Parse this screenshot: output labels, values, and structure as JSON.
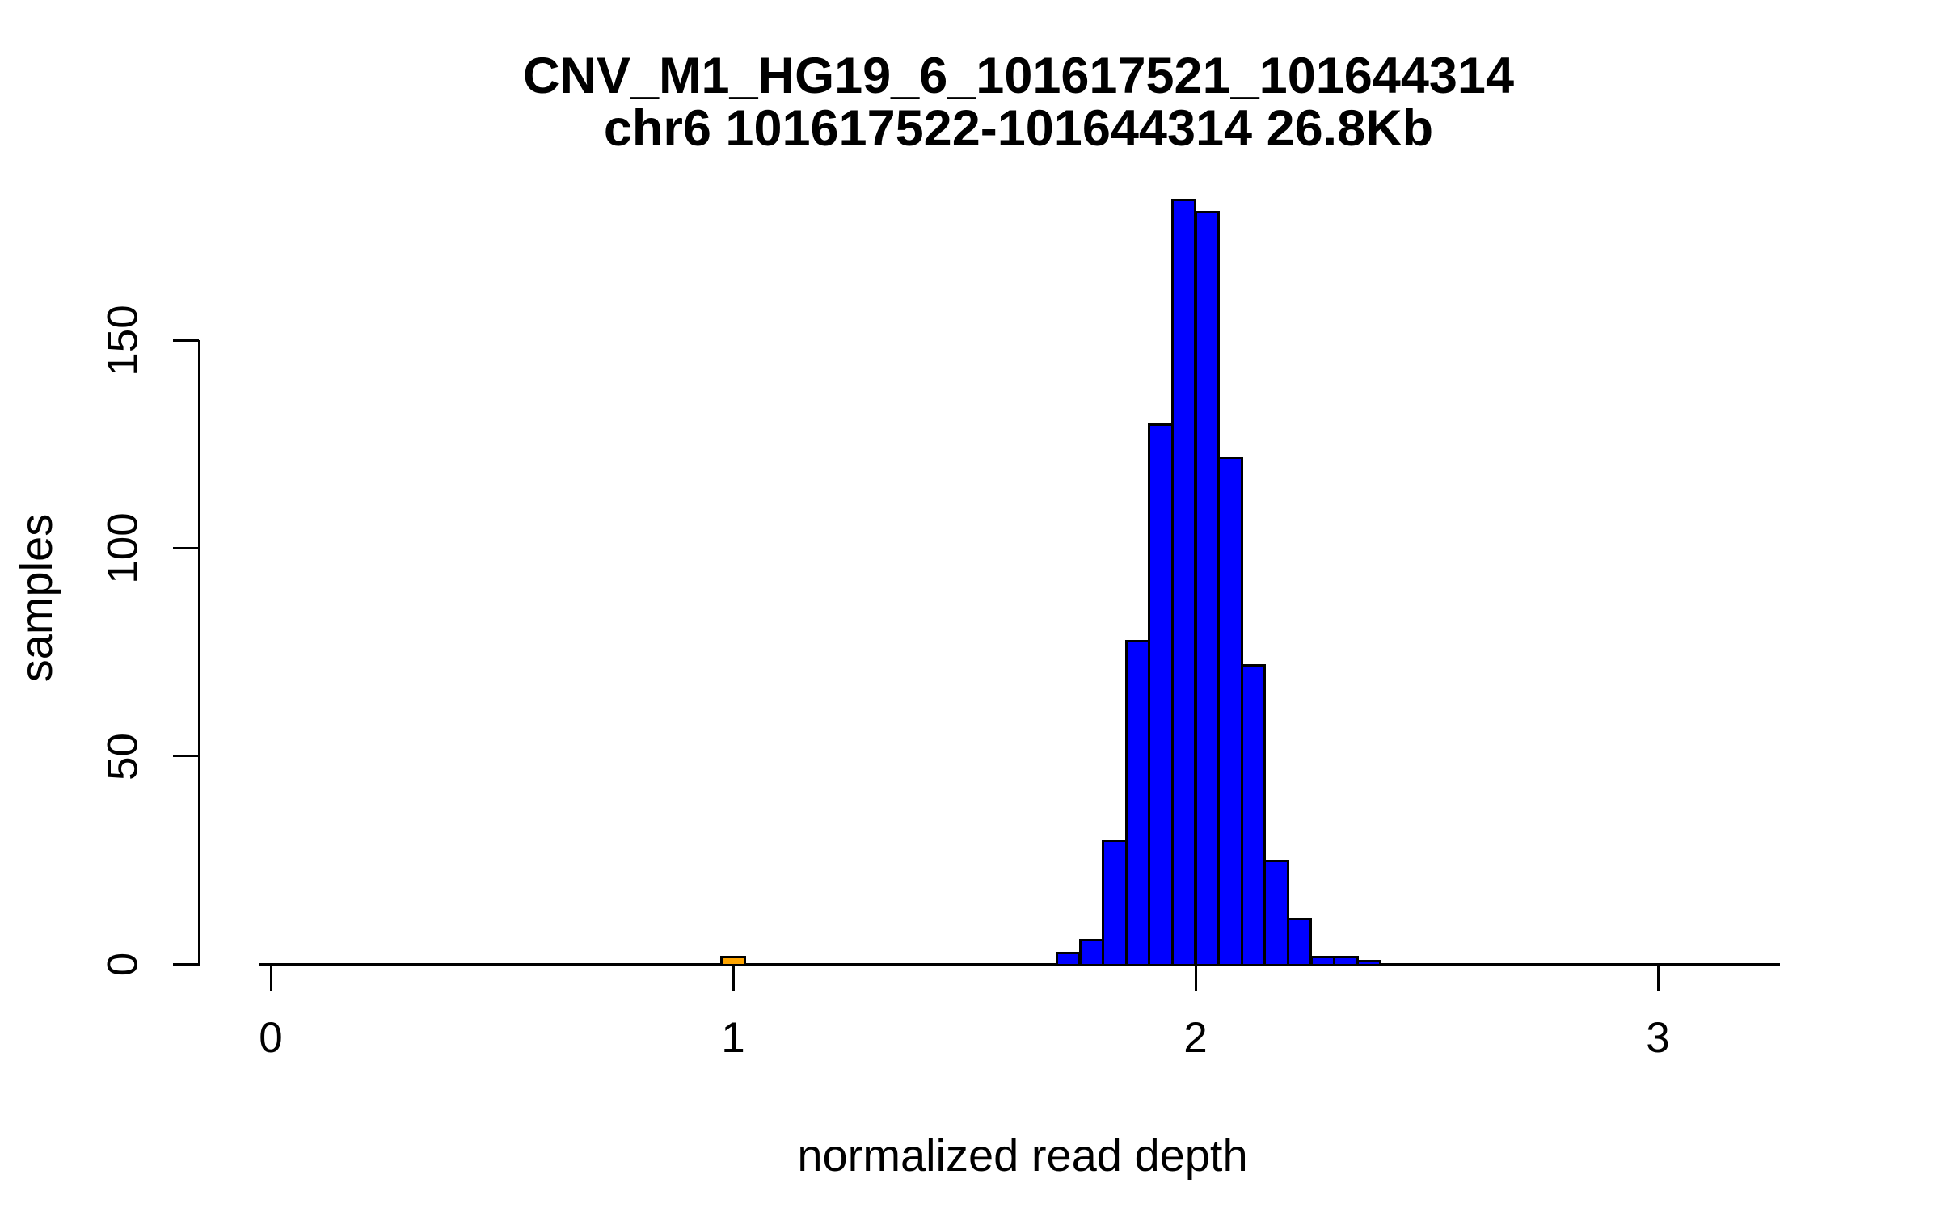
{
  "figure": {
    "background": "#FFFFFF",
    "text_color": "#000000"
  },
  "chart_data": {
    "type": "bar",
    "subtype": "histogram",
    "title": "CNV_M1_HG19_6_101617521_101644314",
    "subtitle": "chr6 101617522-101644314 26.8Kb",
    "xlabel": "normalized read depth",
    "ylabel": "samples",
    "x_ticks": [
      0,
      1,
      2,
      3
    ],
    "y_ticks": [
      0,
      50,
      100,
      150
    ],
    "xlim": [
      -0.03,
      3.27
    ],
    "ylim": [
      0,
      190
    ],
    "grid": false,
    "legend": "none",
    "bin_width": 0.05,
    "bar_fill": "#0000FF",
    "bar_border": "#000000",
    "highlight_fill": "#FFA500",
    "bins": [
      {
        "start": 1.7,
        "end": 1.75,
        "count": 3
      },
      {
        "start": 1.75,
        "end": 1.8,
        "count": 6
      },
      {
        "start": 1.8,
        "end": 1.85,
        "count": 30
      },
      {
        "start": 1.85,
        "end": 1.9,
        "count": 78
      },
      {
        "start": 1.9,
        "end": 1.95,
        "count": 130
      },
      {
        "start": 1.95,
        "end": 2.0,
        "count": 184
      },
      {
        "start": 2.0,
        "end": 2.05,
        "count": 181
      },
      {
        "start": 2.05,
        "end": 2.1,
        "count": 122
      },
      {
        "start": 2.1,
        "end": 2.15,
        "count": 72
      },
      {
        "start": 2.15,
        "end": 2.2,
        "count": 25
      },
      {
        "start": 2.2,
        "end": 2.25,
        "count": 11
      },
      {
        "start": 2.25,
        "end": 2.3,
        "count": 2
      },
      {
        "start": 2.3,
        "end": 2.35,
        "count": 2
      },
      {
        "start": 2.35,
        "end": 2.4,
        "count": 1
      }
    ],
    "highlight_bin": {
      "start": 0.975,
      "end": 1.025,
      "count": 2
    }
  }
}
